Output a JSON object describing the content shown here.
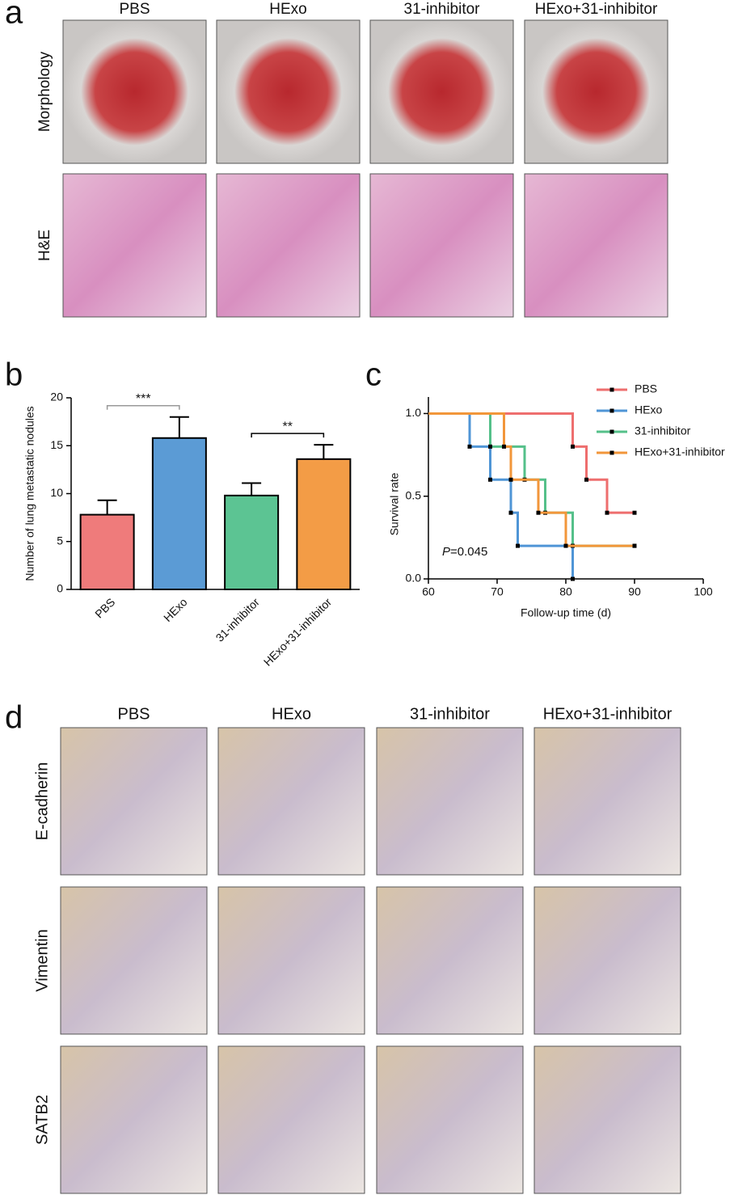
{
  "panel_a": {
    "label": "a",
    "columns": [
      "PBS",
      "HExo",
      "31-inhibitor",
      "HExo+31-inhibitor"
    ],
    "rows": [
      "Morphology",
      "H&E"
    ]
  },
  "chart_data": [
    {
      "type": "bar",
      "label": "b",
      "y_label": "Number of lung metastatic nodules",
      "categories": [
        "PBS",
        "HExo",
        "31-inhibitor",
        "HExo+31-inhibitor"
      ],
      "values": [
        7.8,
        15.8,
        9.8,
        13.6
      ],
      "errors": [
        1.5,
        2.2,
        1.3,
        1.5
      ],
      "colors": [
        "#ef7b7b",
        "#5b9bd5",
        "#5cc493",
        "#f39c46"
      ],
      "ylim": [
        0,
        20
      ],
      "yticks": [
        0,
        5,
        10,
        15,
        20
      ],
      "annotations": [
        {
          "text": "***",
          "between": [
            0,
            1
          ]
        },
        {
          "text": "**",
          "between": [
            2,
            3
          ]
        }
      ]
    },
    {
      "type": "step",
      "label": "c",
      "x_label": "Follow-up time (d)",
      "y_label": "Survival rate",
      "xlim": [
        60,
        100
      ],
      "xticks": [
        60,
        70,
        80,
        90,
        100
      ],
      "ylim": [
        0,
        1.1
      ],
      "yticks": [
        {
          "value": 0,
          "label": "0.0"
        },
        {
          "value": 0.5,
          "label": "0.5"
        },
        {
          "value": 1,
          "label": "1.0"
        }
      ],
      "legend": "top-right",
      "annotation": {
        "symbol": "P",
        "text": "=0.045"
      },
      "series": [
        {
          "name": "PBS",
          "color": "#ee6e6e",
          "x": [
            60,
            81,
            83,
            86,
            90
          ],
          "values": [
            1.0,
            0.8,
            0.6,
            0.4,
            0.4
          ]
        },
        {
          "name": "HExo",
          "color": "#4f95d6",
          "x": [
            60,
            66,
            69,
            72,
            73,
            81
          ],
          "values": [
            1.0,
            0.8,
            0.6,
            0.4,
            0.2,
            0.0
          ]
        },
        {
          "name": "31-inhibitor",
          "color": "#55c08a",
          "x": [
            60,
            69,
            74,
            77,
            81,
            90
          ],
          "values": [
            1.0,
            0.8,
            0.6,
            0.4,
            0.2,
            0.2
          ]
        },
        {
          "name": "HExo+31-inhibitor",
          "color": "#f2963a",
          "x": [
            60,
            71,
            72,
            76,
            80,
            90
          ],
          "values": [
            1.0,
            0.8,
            0.6,
            0.4,
            0.2,
            0.2
          ]
        }
      ]
    }
  ],
  "panel_d": {
    "label": "d",
    "columns": [
      "PBS",
      "HExo",
      "31-inhibitor",
      "HExo+31-inhibitor"
    ],
    "rows": [
      "E-cadherin",
      "Vimentin",
      "SATB2"
    ]
  }
}
